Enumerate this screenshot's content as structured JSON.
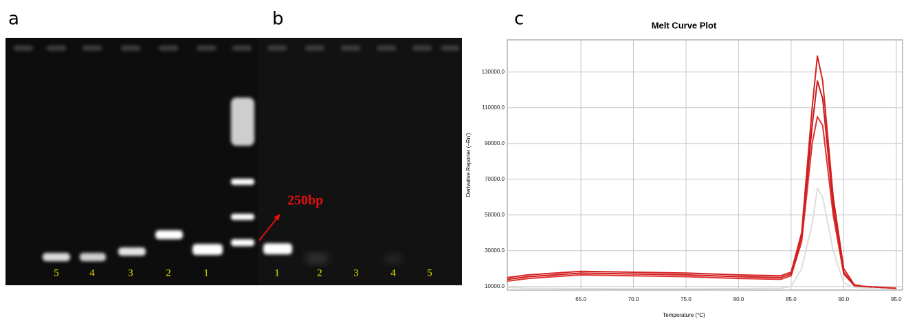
{
  "panels": {
    "a": {
      "label": "a",
      "lane_labels": [
        "5",
        "4",
        "3",
        "2",
        "1"
      ]
    },
    "b": {
      "label": "b",
      "lane_labels": [
        "1",
        "2",
        "3",
        "4",
        "5"
      ],
      "annotation": "250bp"
    },
    "c": {
      "label": "c"
    }
  },
  "chart_data": {
    "type": "line",
    "title": "Melt Curve Plot",
    "x_label": "Temperature (°C)",
    "y_label": "Derivative Reporter (−Rn')",
    "x": [
      58,
      60,
      65,
      70,
      75,
      80,
      84,
      85,
      86,
      87,
      87.5,
      88,
      89,
      90,
      91,
      92,
      95
    ],
    "series": [
      {
        "color": "#d42020",
        "values": [
          15000,
          16500,
          18500,
          18000,
          17500,
          16500,
          16000,
          18000,
          40000,
          110000,
          139000,
          125000,
          60000,
          20000,
          11000,
          10000,
          9000
        ]
      },
      {
        "color": "#cc1a1a",
        "values": [
          14000,
          15500,
          17500,
          17000,
          16500,
          15500,
          15000,
          17000,
          38000,
          100000,
          125000,
          115000,
          55000,
          18000,
          10500,
          10000,
          9000
        ]
      },
      {
        "color": "#e03030",
        "values": [
          13000,
          14500,
          16500,
          16000,
          15500,
          14500,
          14000,
          16000,
          35000,
          90000,
          105000,
          100000,
          50000,
          17000,
          10500,
          10000,
          9000
        ]
      },
      {
        "color": "#dddddd",
        "values": [
          9500,
          9000,
          8800,
          8700,
          8700,
          8800,
          9000,
          10000,
          20000,
          45000,
          65000,
          60000,
          30000,
          12000,
          9500,
          9200,
          9000
        ]
      }
    ],
    "xlim": [
      58,
      95.6
    ],
    "ylim": [
      8000,
      148000
    ],
    "xticks": [
      {
        "value": 65,
        "label": "65.0"
      },
      {
        "value": 70,
        "label": "70.0"
      },
      {
        "value": 75,
        "label": "75.0"
      },
      {
        "value": 80,
        "label": "80.0"
      },
      {
        "value": 85,
        "label": "85.0"
      },
      {
        "value": 90,
        "label": "90.0"
      },
      {
        "value": 95,
        "label": "95.0"
      }
    ],
    "yticks": [
      {
        "value": 10000,
        "label": "10000.0"
      },
      {
        "value": 30000,
        "label": "30000.0"
      },
      {
        "value": 50000,
        "label": "50000.0"
      },
      {
        "value": 70000,
        "label": "70000.0"
      },
      {
        "value": 90000,
        "label": "90000.0"
      },
      {
        "value": 110000,
        "label": "110000.0"
      },
      {
        "value": 130000,
        "label": "130000.0"
      }
    ],
    "grid": true
  }
}
